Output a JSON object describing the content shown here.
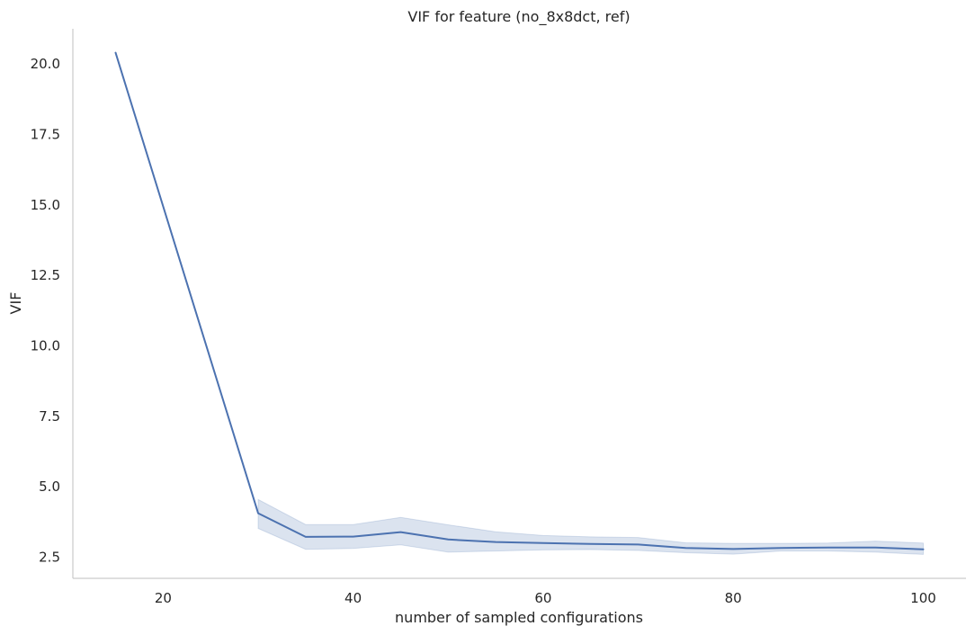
{
  "chart_data": {
    "type": "line",
    "title": "VIF for feature (no_8x8dct, ref)",
    "xlabel": "number of sampled configurations",
    "ylabel": "VIF",
    "xlim": [
      10.5,
      104.5
    ],
    "ylim": [
      1.75,
      21.25
    ],
    "xticks": [
      20,
      40,
      60,
      80,
      100
    ],
    "xtick_labels": [
      "20",
      "40",
      "60",
      "80",
      "100"
    ],
    "yticks": [
      2.5,
      5.0,
      7.5,
      10.0,
      12.5,
      15.0,
      17.5,
      20.0
    ],
    "ytick_labels": [
      "2.5",
      "5.0",
      "7.5",
      "10.0",
      "12.5",
      "15.0",
      "17.5",
      "20.0"
    ],
    "grid": false,
    "legend": "none",
    "series": [
      {
        "color": "#4c72b0",
        "band_color": "#4c72b0",
        "x": [
          15,
          30,
          35,
          40,
          45,
          50,
          55,
          60,
          65,
          70,
          75,
          80,
          85,
          90,
          95,
          100
        ],
        "y": [
          20.4,
          4.06,
          3.22,
          3.23,
          3.39,
          3.13,
          3.04,
          3.0,
          2.97,
          2.95,
          2.83,
          2.79,
          2.83,
          2.84,
          2.84,
          2.78
        ],
        "ci_lower": [
          null,
          3.52,
          2.78,
          2.81,
          2.94,
          2.68,
          2.72,
          2.76,
          2.77,
          2.74,
          2.66,
          2.61,
          2.72,
          2.72,
          2.68,
          2.6
        ],
        "ci_upper": [
          null,
          4.55,
          3.66,
          3.66,
          3.91,
          3.65,
          3.4,
          3.27,
          3.22,
          3.2,
          3.01,
          2.99,
          2.99,
          3.0,
          3.07,
          3.0
        ]
      }
    ]
  }
}
